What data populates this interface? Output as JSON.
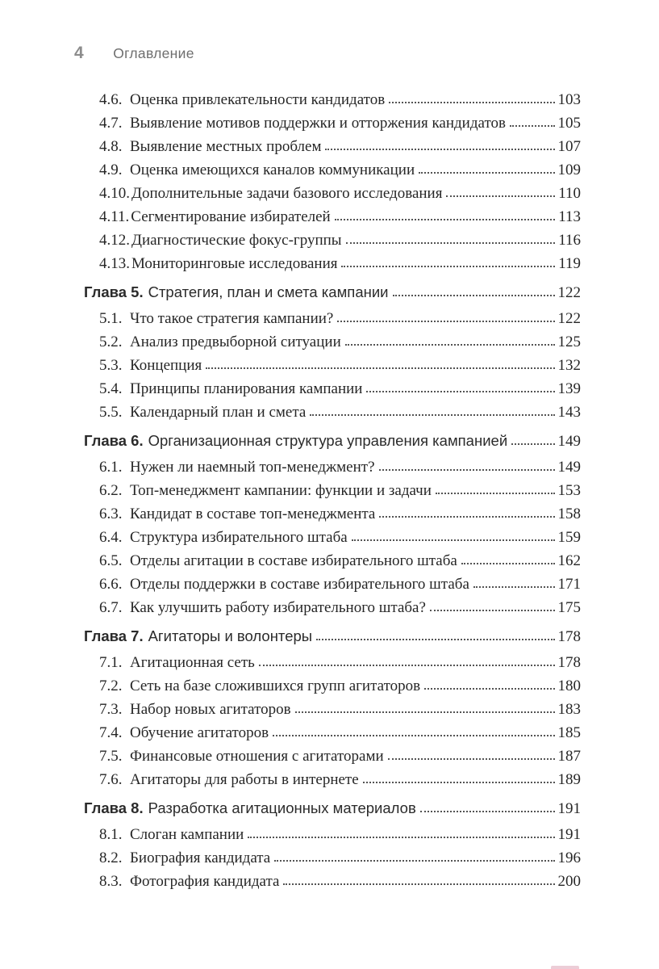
{
  "page": {
    "number": "4",
    "header": "Оглавление"
  },
  "toc": {
    "sections": [
      {
        "chapter": null,
        "items": [
          {
            "num": "4.6.",
            "title": "Оценка привлекательности кандидатов",
            "page": "103"
          },
          {
            "num": "4.7.",
            "title": "Выявление мотивов поддержки и отторжения кандидатов",
            "page": "105"
          },
          {
            "num": "4.8.",
            "title": "Выявление местных проблем",
            "page": "107"
          },
          {
            "num": "4.9.",
            "title": "Оценка имеющихся каналов коммуникации",
            "page": "109"
          },
          {
            "num": "4.10.",
            "title": "Дополнительные задачи базового исследования",
            "page": "110"
          },
          {
            "num": "4.11.",
            "title": "Сегментирование избирателей",
            "page": "113"
          },
          {
            "num": "4.12.",
            "title": "Диагностические фокус-группы",
            "page": "116"
          },
          {
            "num": "4.13.",
            "title": "Мониторинговые исследования",
            "page": "119"
          }
        ]
      },
      {
        "chapter": {
          "label": "Глава 5.",
          "title": "Стратегия, план и смета кампании",
          "page": "122"
        },
        "items": [
          {
            "num": "5.1.",
            "title": "Что такое стратегия кампании?",
            "page": "122"
          },
          {
            "num": "5.2.",
            "title": "Анализ предвыборной ситуации",
            "page": "125"
          },
          {
            "num": "5.3.",
            "title": "Концепция",
            "page": "132"
          },
          {
            "num": "5.4.",
            "title": "Принципы планирования кампании",
            "page": "139"
          },
          {
            "num": "5.5.",
            "title": "Календарный план и смета",
            "page": "143"
          }
        ]
      },
      {
        "chapter": {
          "label": "Глава 6.",
          "title": "Организационная структура управления кампанией",
          "page": "149"
        },
        "items": [
          {
            "num": "6.1.",
            "title": "Нужен ли наемный топ-менеджмент?",
            "page": "149"
          },
          {
            "num": "6.2.",
            "title": "Топ-менеджмент кампании: функции и задачи",
            "page": "153"
          },
          {
            "num": "6.3.",
            "title": "Кандидат в составе топ-менеджмента",
            "page": "158"
          },
          {
            "num": "6.4.",
            "title": "Структура избирательного штаба",
            "page": "159"
          },
          {
            "num": "6.5.",
            "title": "Отделы агитации в составе избирательного штаба",
            "page": "162"
          },
          {
            "num": "6.6.",
            "title": "Отделы поддержки в составе избирательного штаба",
            "page": "171"
          },
          {
            "num": "6.7.",
            "title": "Как улучшить работу избирательного штаба?",
            "page": "175"
          }
        ]
      },
      {
        "chapter": {
          "label": "Глава 7.",
          "title": "Агитаторы и волонтеры",
          "page": "178"
        },
        "items": [
          {
            "num": "7.1.",
            "title": "Агитационная сеть",
            "page": "178"
          },
          {
            "num": "7.2.",
            "title": "Сеть на базе сложившихся групп агитаторов",
            "page": "180"
          },
          {
            "num": "7.3.",
            "title": "Набор новых агитаторов",
            "page": "183"
          },
          {
            "num": "7.4.",
            "title": "Обучение агитаторов",
            "page": "185"
          },
          {
            "num": "7.5.",
            "title": "Финансовые отношения с агитаторами",
            "page": "187"
          },
          {
            "num": "7.6.",
            "title": "Агитаторы для работы в интернете",
            "page": "189"
          }
        ]
      },
      {
        "chapter": {
          "label": "Глава 8.",
          "title": "Разработка агитационных материалов",
          "page": "191"
        },
        "items": [
          {
            "num": "8.1.",
            "title": "Слоган кампании",
            "page": "191"
          },
          {
            "num": "8.2.",
            "title": "Биография кандидата",
            "page": "196"
          },
          {
            "num": "8.3.",
            "title": "Фотография кандидата",
            "page": "200"
          }
        ]
      }
    ]
  },
  "decorations": {
    "bottom_red_edge_color": "#eccdd7"
  }
}
